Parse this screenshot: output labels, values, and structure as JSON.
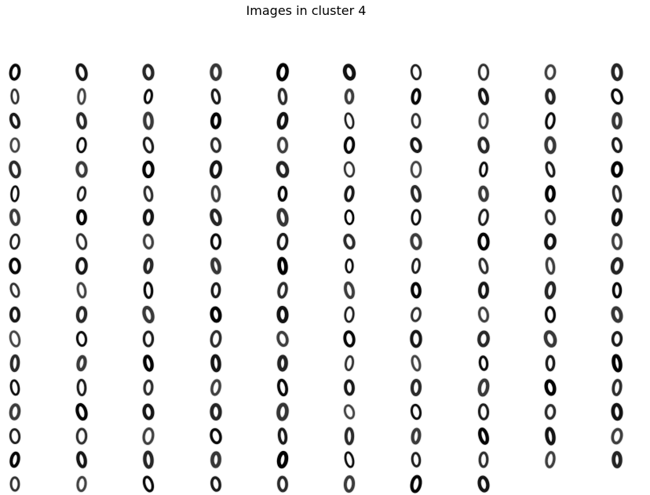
{
  "figure": {
    "title": "Images in cluster 4",
    "digit_label": "0",
    "colors": {
      "background": "#ffffff",
      "ink": "#000000",
      "title": "#000000"
    }
  },
  "grid": {
    "columns": 10,
    "rows": 18,
    "column_counts": [
      18,
      18,
      18,
      18,
      18,
      18,
      18,
      18,
      17,
      17
    ],
    "total_images": 178
  }
}
